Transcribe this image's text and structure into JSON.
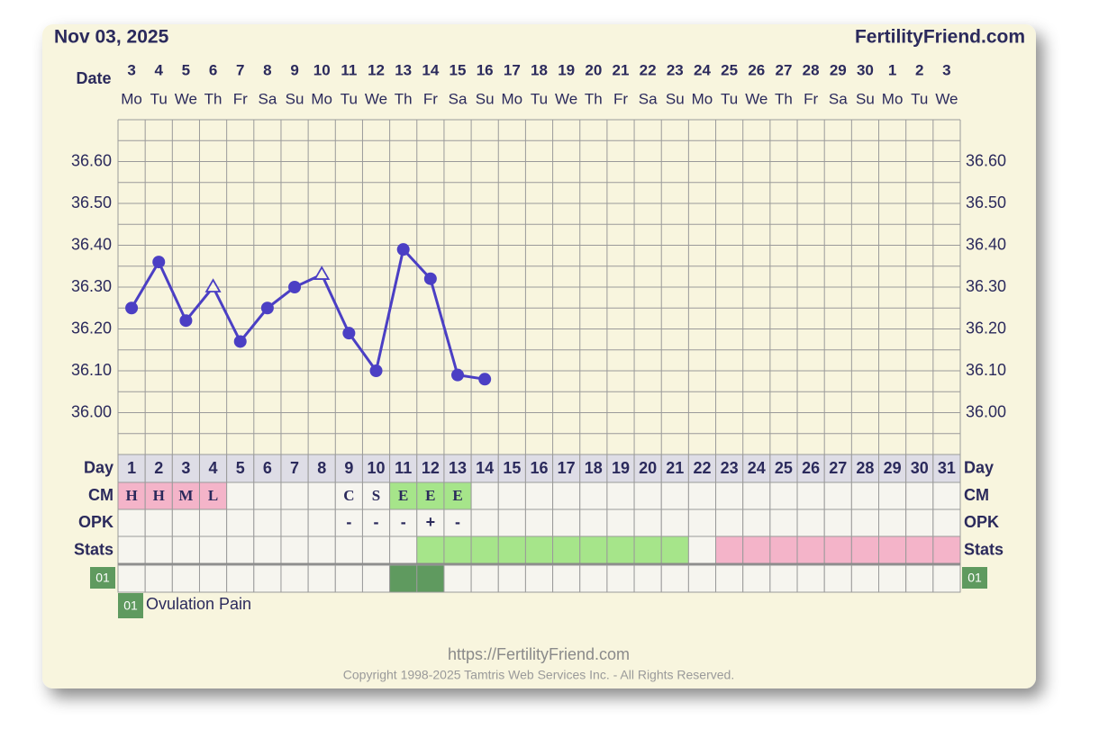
{
  "header": {
    "date": "Nov 03, 2025",
    "site": "FertilityFriend.com"
  },
  "chart_data": {
    "type": "line",
    "date_label": "Date",
    "dates": [
      3,
      4,
      5,
      6,
      7,
      8,
      9,
      10,
      11,
      12,
      13,
      14,
      15,
      16,
      17,
      18,
      19,
      20,
      21,
      22,
      23,
      24,
      25,
      26,
      27,
      28,
      29,
      30,
      1,
      2,
      3
    ],
    "weekdays": [
      "Mo",
      "Tu",
      "We",
      "Th",
      "Fr",
      "Sa",
      "Su",
      "Mo",
      "Tu",
      "We",
      "Th",
      "Fr",
      "Sa",
      "Su",
      "Mo",
      "Tu",
      "We",
      "Th",
      "Fr",
      "Sa",
      "Su",
      "Mo",
      "Tu",
      "We",
      "Th",
      "Fr",
      "Sa",
      "Su",
      "Mo",
      "Tu",
      "We"
    ],
    "day_label": "Day",
    "days": [
      1,
      2,
      3,
      4,
      5,
      6,
      7,
      8,
      9,
      10,
      11,
      12,
      13,
      14,
      15,
      16,
      17,
      18,
      19,
      20,
      21,
      22,
      23,
      24,
      25,
      26,
      27,
      28,
      29,
      30,
      31
    ],
    "values": [
      36.25,
      36.36,
      36.22,
      36.3,
      36.17,
      36.25,
      36.3,
      36.33,
      36.19,
      36.1,
      36.39,
      36.32,
      36.09,
      36.08,
      null,
      null,
      null,
      null,
      null,
      null,
      null,
      null,
      null,
      null,
      null,
      null,
      null,
      null,
      null,
      null,
      null
    ],
    "markers": [
      "circle",
      "circle",
      "circle",
      "triangle",
      "circle",
      "circle",
      "circle",
      "triangle",
      "circle",
      "circle",
      "circle",
      "circle",
      "circle",
      "circle",
      null,
      null,
      null,
      null,
      null,
      null,
      null,
      null,
      null,
      null,
      null,
      null,
      null,
      null,
      null,
      null,
      null
    ],
    "color": "#4b3fc4",
    "ylim": [
      35.9,
      36.7
    ],
    "yticks": [
      {
        "value": 36.0,
        "label": "36.00"
      },
      {
        "value": 36.1,
        "label": "36.10"
      },
      {
        "value": 36.2,
        "label": "36.20"
      },
      {
        "value": 36.3,
        "label": "36.30"
      },
      {
        "value": 36.4,
        "label": "36.40"
      },
      {
        "value": 36.5,
        "label": "36.50"
      },
      {
        "value": 36.6,
        "label": "36.60"
      }
    ],
    "grid": true,
    "grid_step": 0.05
  },
  "rows": {
    "cm": {
      "label": "CM",
      "values": [
        "H",
        "H",
        "M",
        "L",
        null,
        null,
        null,
        null,
        "C",
        "S",
        "E",
        "E",
        "E",
        null,
        null,
        null,
        null,
        null,
        null,
        null,
        null,
        null,
        null,
        null,
        null,
        null,
        null,
        null,
        null,
        null,
        null
      ],
      "colors": [
        "#f4b4c9",
        "#f4b4c9",
        "#f4b4c9",
        "#f4b4c9",
        null,
        null,
        null,
        null,
        null,
        null,
        "#a6e58a",
        "#a6e58a",
        "#a6e58a",
        null,
        null,
        null,
        null,
        null,
        null,
        null,
        null,
        null,
        null,
        null,
        null,
        null,
        null,
        null,
        null,
        null,
        null
      ]
    },
    "opk": {
      "label": "OPK",
      "values": [
        null,
        null,
        null,
        null,
        null,
        null,
        null,
        null,
        "-",
        "-",
        "-",
        "+",
        "-",
        null,
        null,
        null,
        null,
        null,
        null,
        null,
        null,
        null,
        null,
        null,
        null,
        null,
        null,
        null,
        null,
        null,
        null
      ]
    },
    "stats": {
      "label": "Stats",
      "colors": [
        null,
        null,
        null,
        null,
        null,
        null,
        null,
        null,
        null,
        null,
        null,
        "#a6e58a",
        "#a6e58a",
        "#a6e58a",
        "#a6e58a",
        "#a6e58a",
        "#a6e58a",
        "#a6e58a",
        "#a6e58a",
        "#a6e58a",
        "#a6e58a",
        null,
        "#f4b4c9",
        "#f4b4c9",
        "#f4b4c9",
        "#f4b4c9",
        "#f4b4c9",
        "#f4b4c9",
        "#f4b4c9",
        "#f4b4c9",
        "#f4b4c9"
      ]
    },
    "ovulation_pain": {
      "label": "01",
      "colors": [
        null,
        null,
        null,
        null,
        null,
        null,
        null,
        null,
        null,
        null,
        "#5f9a5f",
        "#5f9a5f",
        null,
        null,
        null,
        null,
        null,
        null,
        null,
        null,
        null,
        null,
        null,
        null,
        null,
        null,
        null,
        null,
        null,
        null,
        null
      ]
    }
  },
  "legend": {
    "code": "01",
    "text": "Ovulation Pain"
  },
  "footer": {
    "url": "https://FertilityFriend.com",
    "copyright": "Copyright 1998-2025 Tamtris Web Services Inc. - All Rights Reserved."
  }
}
